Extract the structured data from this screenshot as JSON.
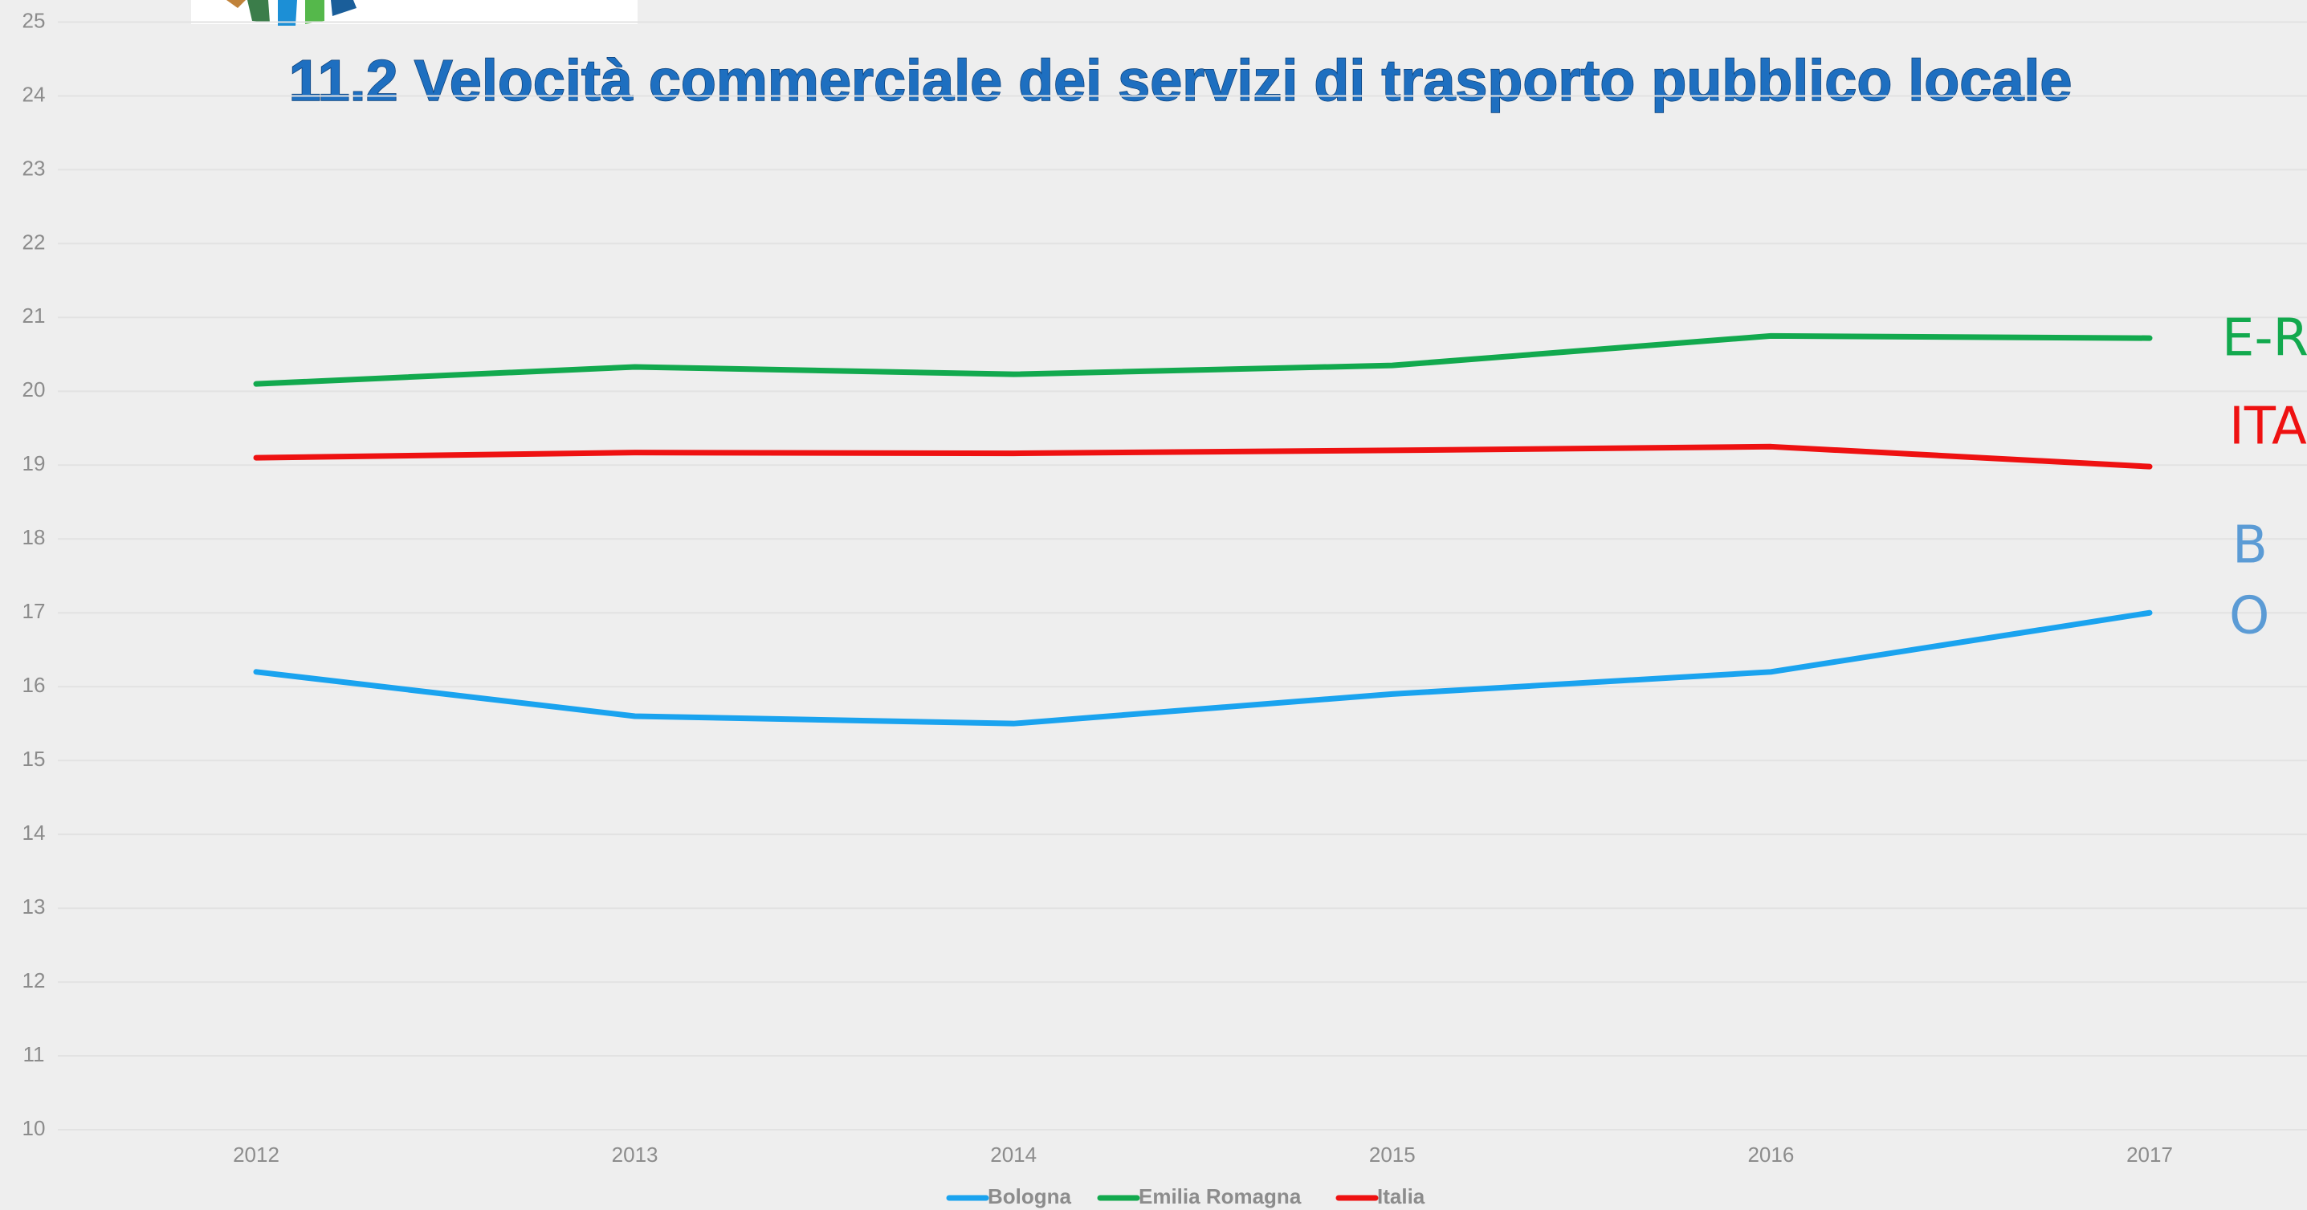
{
  "chart_data": {
    "type": "line",
    "title": "11.2 Velocità commerciale dei servizi di trasporto pubblico locale",
    "categories": [
      "2012",
      "2013",
      "2014",
      "2015",
      "2016",
      "2017"
    ],
    "series": [
      {
        "name": "Bologna",
        "color": "#1aa3ef",
        "values": [
          16.2,
          15.6,
          15.5,
          15.9,
          16.2,
          17.0
        ]
      },
      {
        "name": "Emilia Romagna",
        "color": "#12a94e",
        "values": [
          20.1,
          20.33,
          20.23,
          20.35,
          20.75,
          20.72
        ]
      },
      {
        "name": "Italia",
        "color": "#ee1111",
        "values": [
          19.1,
          19.17,
          19.16,
          19.2,
          19.25,
          18.98
        ]
      }
    ],
    "ylim": [
      10,
      25
    ],
    "yticks": [
      10,
      11,
      12,
      13,
      14,
      15,
      16,
      17,
      18,
      19,
      20,
      21,
      22,
      23,
      24,
      25
    ],
    "grid": true,
    "legend": "bottom",
    "annotations": [
      {
        "text": "E-R",
        "color": "#12a94e"
      },
      {
        "text": "ITA",
        "color": "#ee1111"
      },
      {
        "text": "B",
        "color": "#5b9bd5"
      },
      {
        "text": "O",
        "color": "#5b9bd5"
      }
    ]
  }
}
